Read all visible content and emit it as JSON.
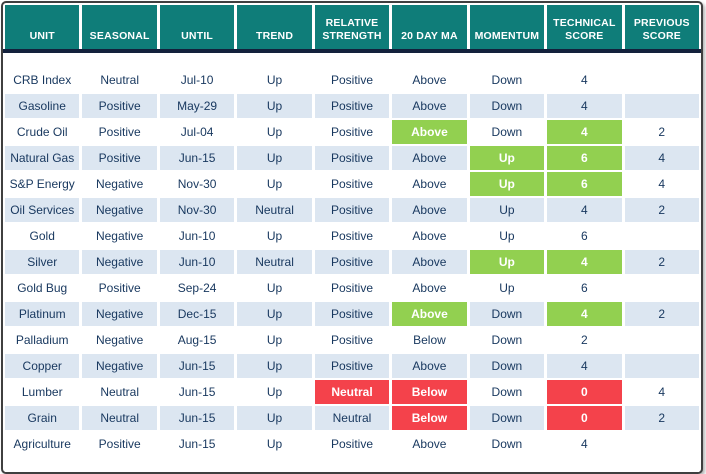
{
  "colors": {
    "header_bg": "#0f7d79",
    "header_text": "#ffffff",
    "row_bg": "#ffffff",
    "row_alt_bg": "#dce6f1",
    "text": "#17375e",
    "green": "#92d050",
    "red": "#f4424b",
    "divider": "#13213c",
    "frame": "#3f3f3f"
  },
  "chart_data": {
    "type": "table",
    "columns": [
      "UNIT",
      "SEASONAL",
      "UNTIL",
      "TREND",
      "RELATIVE STRENGTH",
      "20 DAY MA",
      "MOMENTUM",
      "TECHNICAL SCORE",
      "PREVIOUS SCORE"
    ],
    "column_keys": [
      "unit",
      "seasonal",
      "until",
      "trend",
      "relative-strength",
      "20-day-ma",
      "momentum",
      "technical-score",
      "previous-score"
    ],
    "rows": [
      {
        "cells": [
          "CRB Index",
          "Neutral",
          "Jul-10",
          "Up",
          "Positive",
          "Above",
          "Down",
          "4",
          ""
        ],
        "hl": {}
      },
      {
        "cells": [
          "Gasoline",
          "Positive",
          "May-29",
          "Up",
          "Positive",
          "Above",
          "Down",
          "4",
          ""
        ],
        "hl": {}
      },
      {
        "cells": [
          "Crude Oil",
          "Positive",
          "Jul-04",
          "Up",
          "Positive",
          "Above",
          "Down",
          "4",
          "2"
        ],
        "hl": {
          "5": "green",
          "7": "green"
        }
      },
      {
        "cells": [
          "Natural Gas",
          "Positive",
          "Jun-15",
          "Up",
          "Positive",
          "Above",
          "Up",
          "6",
          "4"
        ],
        "hl": {
          "6": "green",
          "7": "green"
        }
      },
      {
        "cells": [
          "S&P Energy",
          "Negative",
          "Nov-30",
          "Up",
          "Positive",
          "Above",
          "Up",
          "6",
          "4"
        ],
        "hl": {
          "6": "green",
          "7": "green"
        }
      },
      {
        "cells": [
          "Oil Services",
          "Negative",
          "Nov-30",
          "Neutral",
          "Positive",
          "Above",
          "Up",
          "4",
          "2"
        ],
        "hl": {}
      },
      {
        "cells": [
          "Gold",
          "Negative",
          "Jun-10",
          "Up",
          "Positive",
          "Above",
          "Up",
          "6",
          ""
        ],
        "hl": {}
      },
      {
        "cells": [
          "Silver",
          "Negative",
          "Jun-10",
          "Neutral",
          "Positive",
          "Above",
          "Up",
          "4",
          "2"
        ],
        "hl": {
          "6": "green",
          "7": "green"
        }
      },
      {
        "cells": [
          "Gold Bug",
          "Positive",
          "Sep-24",
          "Up",
          "Positive",
          "Above",
          "Up",
          "6",
          ""
        ],
        "hl": {}
      },
      {
        "cells": [
          "Platinum",
          "Negative",
          "Dec-15",
          "Up",
          "Positive",
          "Above",
          "Down",
          "4",
          "2"
        ],
        "hl": {
          "5": "green",
          "7": "green"
        }
      },
      {
        "cells": [
          "Palladium",
          "Negative",
          "Aug-15",
          "Up",
          "Positive",
          "Below",
          "Down",
          "2",
          ""
        ],
        "hl": {}
      },
      {
        "cells": [
          "Copper",
          "Negative",
          "Jun-15",
          "Up",
          "Positive",
          "Above",
          "Down",
          "4",
          ""
        ],
        "hl": {}
      },
      {
        "cells": [
          "Lumber",
          "Neutral",
          "Jun-15",
          "Up",
          "Neutral",
          "Below",
          "Down",
          "0",
          "4"
        ],
        "hl": {
          "4": "red",
          "5": "red",
          "7": "red"
        }
      },
      {
        "cells": [
          "Grain",
          "Neutral",
          "Jun-15",
          "Up",
          "Neutral",
          "Below",
          "Down",
          "0",
          "2"
        ],
        "hl": {
          "5": "red",
          "7": "red"
        }
      },
      {
        "cells": [
          "Agriculture",
          "Positive",
          "Jun-15",
          "Up",
          "Positive",
          "Above",
          "Down",
          "4",
          ""
        ],
        "hl": {}
      }
    ]
  }
}
